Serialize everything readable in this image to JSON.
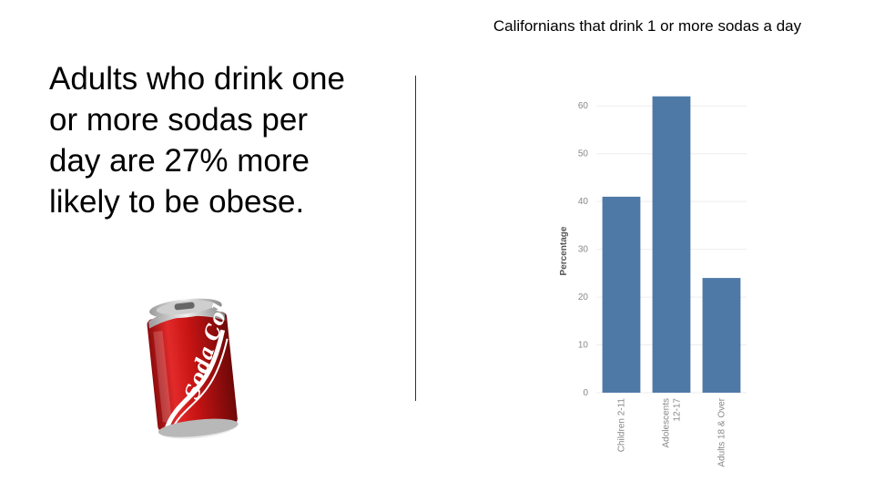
{
  "slide": {
    "headline": "Adults who drink one or more sodas per day are 27% more likely to be obese."
  },
  "can": {
    "brand_text": "Soda Cola",
    "body_color": "#d01818",
    "stripe_color": "#ffffff"
  },
  "chart_data": {
    "type": "bar",
    "title": "Californians that drink 1 or more sodas a day",
    "xlabel": "",
    "ylabel": "Percentage",
    "categories": [
      "Children 2-11",
      "Adolescents\n12-17",
      "Adults 18 & Over"
    ],
    "values": [
      41,
      62,
      24
    ],
    "ylim": [
      0,
      65
    ],
    "yticks": [
      0,
      10,
      20,
      30,
      40,
      50,
      60
    ],
    "grid": true,
    "bar_color": "#4e79a7",
    "tick_color": "#888888"
  }
}
